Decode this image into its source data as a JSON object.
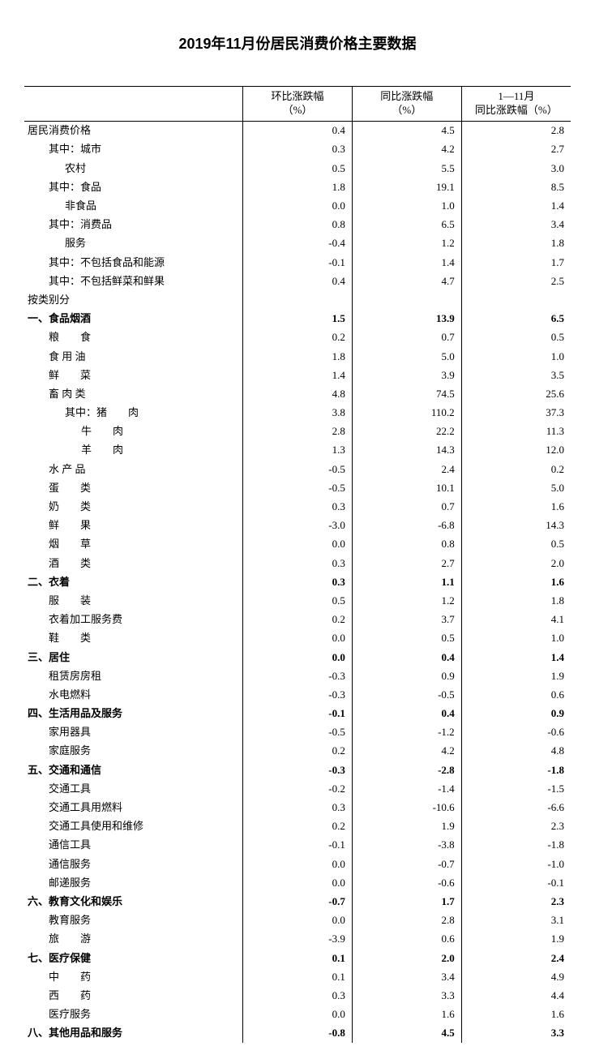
{
  "title": "2019年11月份居民消费价格主要数据",
  "columns": {
    "c0": "",
    "c1_line1": "环比涨跌幅",
    "c1_line2": "（%）",
    "c2_line1": "同比涨跌幅",
    "c2_line2": "（%）",
    "c3_line1": "1—11月",
    "c3_line2": "同比涨跌幅（%）"
  },
  "rows": [
    {
      "label": "居民消费价格",
      "v1": "0.4",
      "v2": "4.5",
      "v3": "2.8",
      "bold": false,
      "indent": 0
    },
    {
      "label": "其中：城市",
      "v1": "0.3",
      "v2": "4.2",
      "v3": "2.7",
      "bold": false,
      "indent": 1
    },
    {
      "label": "农村",
      "v1": "0.5",
      "v2": "5.5",
      "v3": "3.0",
      "bold": false,
      "indent": 2
    },
    {
      "label": "其中：食品",
      "v1": "1.8",
      "v2": "19.1",
      "v3": "8.5",
      "bold": false,
      "indent": 1
    },
    {
      "label": "非食品",
      "v1": "0.0",
      "v2": "1.0",
      "v3": "1.4",
      "bold": false,
      "indent": 2
    },
    {
      "label": "其中：消费品",
      "v1": "0.8",
      "v2": "6.5",
      "v3": "3.4",
      "bold": false,
      "indent": 1
    },
    {
      "label": "服务",
      "v1": "-0.4",
      "v2": "1.2",
      "v3": "1.8",
      "bold": false,
      "indent": 2
    },
    {
      "label": "其中：不包括食品和能源",
      "v1": "-0.1",
      "v2": "1.4",
      "v3": "1.7",
      "bold": false,
      "indent": 1
    },
    {
      "label": "其中：不包括鲜菜和鲜果",
      "v1": "0.4",
      "v2": "4.7",
      "v3": "2.5",
      "bold": false,
      "indent": 1
    },
    {
      "label": "按类别分",
      "v1": "",
      "v2": "",
      "v3": "",
      "bold": false,
      "indent": 0
    },
    {
      "label": "一、食品烟酒",
      "v1": "1.5",
      "v2": "13.9",
      "v3": "6.5",
      "bold": true,
      "indent": 0
    },
    {
      "label": "粮　　食",
      "v1": "0.2",
      "v2": "0.7",
      "v3": "0.5",
      "bold": false,
      "indent": 1
    },
    {
      "label": "食 用 油",
      "v1": "1.8",
      "v2": "5.0",
      "v3": "1.0",
      "bold": false,
      "indent": 1
    },
    {
      "label": "鲜　　菜",
      "v1": "1.4",
      "v2": "3.9",
      "v3": "3.5",
      "bold": false,
      "indent": 1
    },
    {
      "label": "畜 肉 类",
      "v1": "4.8",
      "v2": "74.5",
      "v3": "25.6",
      "bold": false,
      "indent": 1
    },
    {
      "label": "其中：猪　　肉",
      "v1": "3.8",
      "v2": "110.2",
      "v3": "37.3",
      "bold": false,
      "indent": 2
    },
    {
      "label": "牛　　肉",
      "v1": "2.8",
      "v2": "22.2",
      "v3": "11.3",
      "bold": false,
      "indent": 3
    },
    {
      "label": "羊　　肉",
      "v1": "1.3",
      "v2": "14.3",
      "v3": "12.0",
      "bold": false,
      "indent": 3
    },
    {
      "label": "水 产 品",
      "v1": "-0.5",
      "v2": "2.4",
      "v3": "0.2",
      "bold": false,
      "indent": 1
    },
    {
      "label": "蛋　　类",
      "v1": "-0.5",
      "v2": "10.1",
      "v3": "5.0",
      "bold": false,
      "indent": 1
    },
    {
      "label": "奶　　类",
      "v1": "0.3",
      "v2": "0.7",
      "v3": "1.6",
      "bold": false,
      "indent": 1
    },
    {
      "label": "鲜　　果",
      "v1": "-3.0",
      "v2": "-6.8",
      "v3": "14.3",
      "bold": false,
      "indent": 1
    },
    {
      "label": "烟　　草",
      "v1": "0.0",
      "v2": "0.8",
      "v3": "0.5",
      "bold": false,
      "indent": 1
    },
    {
      "label": "酒　　类",
      "v1": "0.3",
      "v2": "2.7",
      "v3": "2.0",
      "bold": false,
      "indent": 1
    },
    {
      "label": "二、衣着",
      "v1": "0.3",
      "v2": "1.1",
      "v3": "1.6",
      "bold": true,
      "indent": 0
    },
    {
      "label": "服　　装",
      "v1": "0.5",
      "v2": "1.2",
      "v3": "1.8",
      "bold": false,
      "indent": 1
    },
    {
      "label": "衣着加工服务费",
      "v1": "0.2",
      "v2": "3.7",
      "v3": "4.1",
      "bold": false,
      "indent": 1
    },
    {
      "label": "鞋　　类",
      "v1": "0.0",
      "v2": "0.5",
      "v3": "1.0",
      "bold": false,
      "indent": 1
    },
    {
      "label": "三、居住",
      "v1": "0.0",
      "v2": "0.4",
      "v3": "1.4",
      "bold": true,
      "indent": 0
    },
    {
      "label": "租赁房房租",
      "v1": "-0.3",
      "v2": "0.9",
      "v3": "1.9",
      "bold": false,
      "indent": 1
    },
    {
      "label": "水电燃料",
      "v1": "-0.3",
      "v2": "-0.5",
      "v3": "0.6",
      "bold": false,
      "indent": 1
    },
    {
      "label": "四、生活用品及服务",
      "v1": "-0.1",
      "v2": "0.4",
      "v3": "0.9",
      "bold": true,
      "indent": 0
    },
    {
      "label": "家用器具",
      "v1": "-0.5",
      "v2": "-1.2",
      "v3": "-0.6",
      "bold": false,
      "indent": 1
    },
    {
      "label": "家庭服务",
      "v1": "0.2",
      "v2": "4.2",
      "v3": "4.8",
      "bold": false,
      "indent": 1
    },
    {
      "label": "五、交通和通信",
      "v1": "-0.3",
      "v2": "-2.8",
      "v3": "-1.8",
      "bold": true,
      "indent": 0
    },
    {
      "label": "交通工具",
      "v1": "-0.2",
      "v2": "-1.4",
      "v3": "-1.5",
      "bold": false,
      "indent": 1
    },
    {
      "label": "交通工具用燃料",
      "v1": "0.3",
      "v2": "-10.6",
      "v3": "-6.6",
      "bold": false,
      "indent": 1
    },
    {
      "label": "交通工具使用和维修",
      "v1": "0.2",
      "v2": "1.9",
      "v3": "2.3",
      "bold": false,
      "indent": 1
    },
    {
      "label": "通信工具",
      "v1": "-0.1",
      "v2": "-3.8",
      "v3": "-1.8",
      "bold": false,
      "indent": 1
    },
    {
      "label": "通信服务",
      "v1": "0.0",
      "v2": "-0.7",
      "v3": "-1.0",
      "bold": false,
      "indent": 1
    },
    {
      "label": "邮递服务",
      "v1": "0.0",
      "v2": "-0.6",
      "v3": "-0.1",
      "bold": false,
      "indent": 1
    },
    {
      "label": "六、教育文化和娱乐",
      "v1": "-0.7",
      "v2": "1.7",
      "v3": "2.3",
      "bold": true,
      "indent": 0
    },
    {
      "label": "教育服务",
      "v1": "0.0",
      "v2": "2.8",
      "v3": "3.1",
      "bold": false,
      "indent": 1
    },
    {
      "label": "旅　　游",
      "v1": "-3.9",
      "v2": "0.6",
      "v3": "1.9",
      "bold": false,
      "indent": 1
    },
    {
      "label": "七、医疗保健",
      "v1": "0.1",
      "v2": "2.0",
      "v3": "2.4",
      "bold": true,
      "indent": 0
    },
    {
      "label": "中　　药",
      "v1": "0.1",
      "v2": "3.4",
      "v3": "4.9",
      "bold": false,
      "indent": 1
    },
    {
      "label": "西　　药",
      "v1": "0.3",
      "v2": "3.3",
      "v3": "4.4",
      "bold": false,
      "indent": 1
    },
    {
      "label": "医疗服务",
      "v1": "0.0",
      "v2": "1.6",
      "v3": "1.6",
      "bold": false,
      "indent": 1
    },
    {
      "label": "八、其他用品和服务",
      "v1": "-0.8",
      "v2": "4.5",
      "v3": "3.3",
      "bold": true,
      "indent": 0
    }
  ]
}
